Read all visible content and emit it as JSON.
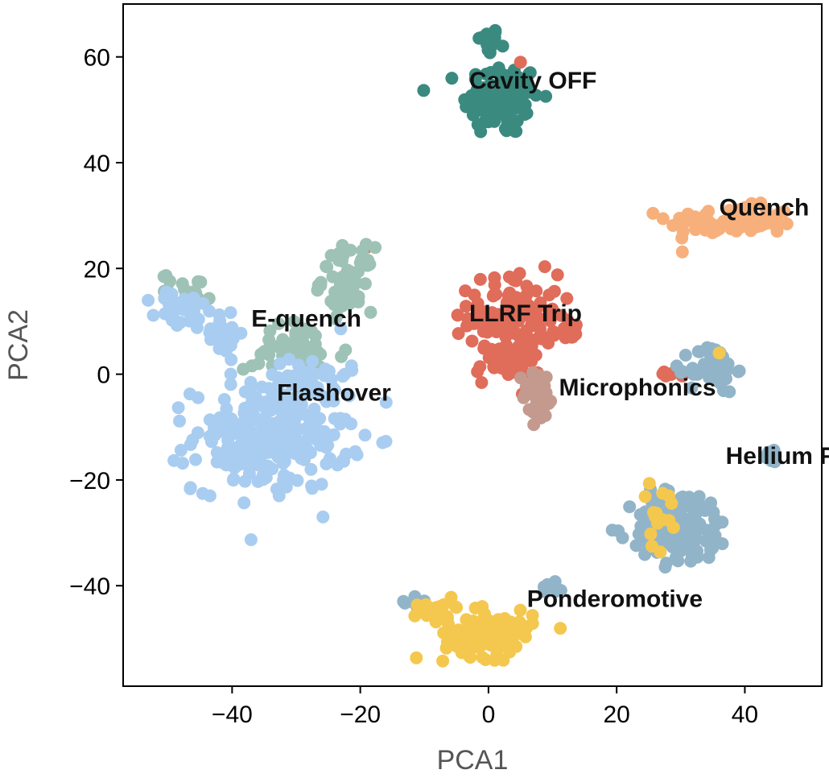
{
  "chart_data": {
    "type": "scatter",
    "xlabel": "PCA1",
    "ylabel": "PCA2",
    "xlim": [
      -57,
      52
    ],
    "ylim": [
      -59,
      70
    ],
    "xticks": [
      -40,
      -20,
      0,
      20,
      40
    ],
    "yticks": [
      -40,
      -20,
      0,
      20,
      40,
      60
    ],
    "xtick_labels": [
      "−40",
      "−20",
      "0",
      "20",
      "40"
    ],
    "ytick_labels": [
      "−40",
      "−20",
      "0",
      "20",
      "40",
      "60"
    ],
    "grid": false,
    "series": [
      {
        "label": "Cavity OFF",
        "color": "#3a8a80",
        "clusters": [
          {
            "cx": 0,
            "cy": 63,
            "sx": 0.8,
            "sy": 1.3,
            "n": 25
          },
          {
            "cx": 2,
            "cy": 52,
            "sx": 3,
            "sy": 3.5,
            "n": 120
          }
        ],
        "label_pos": [
          -3,
          54
        ]
      },
      {
        "label": "Quench",
        "color": "#f7b07c",
        "clusters": [
          {
            "cx": 38,
            "cy": 29,
            "sx": 5,
            "sy": 1.4,
            "n": 90
          }
        ],
        "label_pos": [
          36,
          30
        ]
      },
      {
        "label": "LLRF Trip",
        "color": "#e06c5a",
        "clusters": [
          {
            "cx": 4,
            "cy": 11,
            "sx": 3.5,
            "sy": 4,
            "n": 120
          },
          {
            "cx": 3,
            "cy": 2,
            "sx": 2.5,
            "sy": 2,
            "n": 40
          },
          {
            "cx": 13,
            "cy": 8,
            "sx": 1,
            "sy": 1,
            "n": 10
          },
          {
            "cx": 28,
            "cy": 0,
            "sx": 0.8,
            "sy": 0.3,
            "n": 6
          }
        ],
        "extra_points": [
          [
            5,
            59
          ],
          [
            -19,
            24
          ],
          [
            -10,
            -45
          ],
          [
            30,
            -24
          ],
          [
            -33,
            -4
          ]
        ],
        "label_pos": [
          -3,
          10
        ]
      },
      {
        "label": "E-quench",
        "color": "#9ec2b6",
        "clusters": [
          {
            "cx": -22,
            "cy": 18,
            "sx": 2,
            "sy": 3,
            "n": 60
          },
          {
            "cx": -30,
            "cy": 4,
            "sx": 4,
            "sy": 3,
            "n": 50
          },
          {
            "cx": -47,
            "cy": 16,
            "sx": 2,
            "sy": 1.5,
            "n": 20
          }
        ],
        "label_pos": [
          -37,
          9
        ]
      },
      {
        "label": "Flashover",
        "color": "#a9cdf0",
        "clusters": [
          {
            "cx": -34,
            "cy": -12,
            "sx": 6,
            "sy": 5,
            "n": 260
          },
          {
            "cx": -48,
            "cy": 12,
            "sx": 2,
            "sy": 2,
            "n": 35
          },
          {
            "cx": -42,
            "cy": 8,
            "sx": 2,
            "sy": 2,
            "n": 30
          },
          {
            "cx": -28,
            "cy": 0,
            "sx": 3,
            "sy": 2.5,
            "n": 40
          }
        ],
        "label_pos": [
          -33,
          -5
        ]
      },
      {
        "label": "Microphonics",
        "color": "#c49a8f",
        "clusters": [
          {
            "cx": 8,
            "cy": -4,
            "sx": 1.3,
            "sy": 2.5,
            "n": 45
          }
        ],
        "label_pos": [
          11,
          -4
        ]
      },
      {
        "label": "Hellium Fluc.",
        "color": "#92b4c8",
        "clusters": [
          {
            "cx": 35,
            "cy": 1,
            "sx": 1.8,
            "sy": 2.3,
            "n": 50
          },
          {
            "cx": 30,
            "cy": -29,
            "sx": 4,
            "sy": 3.5,
            "n": 140
          },
          {
            "cx": 44,
            "cy": -15,
            "sx": 0.8,
            "sy": 1,
            "n": 10
          },
          {
            "cx": 10,
            "cy": -40,
            "sx": 0.8,
            "sy": 0.8,
            "n": 8
          },
          {
            "cx": -11,
            "cy": -43,
            "sx": 1,
            "sy": 0.6,
            "n": 10
          }
        ],
        "label_pos": [
          37,
          -17
        ]
      },
      {
        "label": "Ponderomotive",
        "color": "#f4c84e",
        "clusters": [
          {
            "cx": 0,
            "cy": -49,
            "sx": 3.5,
            "sy": 2.2,
            "n": 120
          },
          {
            "cx": -8,
            "cy": -44,
            "sx": 2,
            "sy": 0.7,
            "n": 15
          },
          {
            "cx": 27,
            "cy": -27,
            "sx": 1.8,
            "sy": 3,
            "n": 15
          }
        ],
        "extra_points": [
          [
            36,
            4
          ]
        ],
        "label_pos": [
          6,
          -44
        ]
      }
    ]
  }
}
